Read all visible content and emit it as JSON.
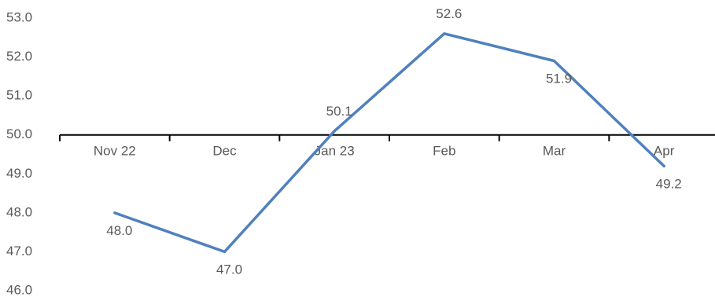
{
  "chart_data": {
    "type": "line",
    "title": "",
    "xlabel": "",
    "ylabel": "",
    "categories": [
      "Nov 22",
      "Dec",
      "Jan 23",
      "Feb",
      "Mar",
      "Apr"
    ],
    "series": [
      {
        "values": [
          48.0,
          47.0,
          50.1,
          52.6,
          51.9,
          49.2
        ]
      }
    ],
    "data_labels": [
      "48.0",
      "47.0",
      "50.1",
      "52.6",
      "51.9",
      "49.2"
    ],
    "y_ticks": [
      "53.0",
      "52.0",
      "51.0",
      "50.0",
      "49.0",
      "48.0",
      "47.0",
      "46.0"
    ],
    "ylim": [
      46,
      53
    ],
    "x_axis_crosses_at": 50,
    "grid": false,
    "line_color": "#4f81bd",
    "axis_color": "#000000",
    "label_color": "#595959"
  }
}
